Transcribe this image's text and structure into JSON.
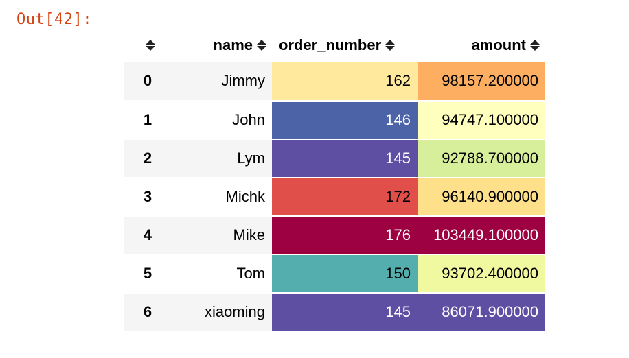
{
  "prompt": "Out[42]:",
  "columns": [
    "name",
    "order_number",
    "amount"
  ],
  "rows": [
    {
      "index": "0",
      "name": "Jimmy",
      "order_number": "162",
      "amount": "98157.200000",
      "order_bg": "#fee99d",
      "order_fg": "#000000",
      "amount_bg": "#fdae61",
      "amount_fg": "#000000"
    },
    {
      "index": "1",
      "name": "John",
      "order_number": "146",
      "amount": "94747.100000",
      "order_bg": "#4c63a8",
      "order_fg": "#ffffff",
      "amount_bg": "#ffffbe",
      "amount_fg": "#000000"
    },
    {
      "index": "2",
      "name": "Lym",
      "order_number": "145",
      "amount": "92788.700000",
      "order_bg": "#5e4fa2",
      "order_fg": "#ffffff",
      "amount_bg": "#d7ef9b",
      "amount_fg": "#000000"
    },
    {
      "index": "3",
      "name": "Michk",
      "order_number": "172",
      "amount": "96140.900000",
      "order_bg": "#e04f4a",
      "order_fg": "#000000",
      "amount_bg": "#fee08b",
      "amount_fg": "#000000"
    },
    {
      "index": "4",
      "name": "Mike",
      "order_number": "176",
      "amount": "103449.100000",
      "order_bg": "#9e0142",
      "order_fg": "#ffffff",
      "amount_bg": "#9e0142",
      "amount_fg": "#ffffff"
    },
    {
      "index": "5",
      "name": "Tom",
      "order_number": "150",
      "amount": "93702.400000",
      "order_bg": "#54aeae",
      "order_fg": "#000000",
      "amount_bg": "#f0f8a0",
      "amount_fg": "#000000"
    },
    {
      "index": "6",
      "name": "xiaoming",
      "order_number": "145",
      "amount": "86071.900000",
      "order_bg": "#5e4fa2",
      "order_fg": "#ffffff",
      "amount_bg": "#5e4fa2",
      "amount_fg": "#ffffff"
    }
  ]
}
